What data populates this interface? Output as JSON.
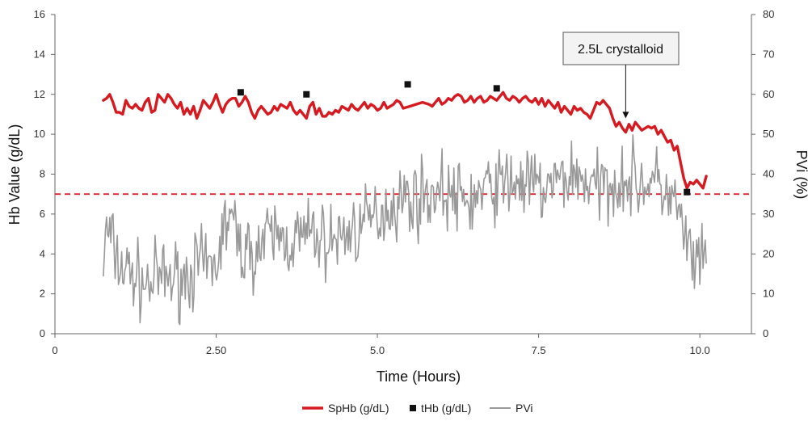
{
  "chart_data": {
    "type": "line",
    "xlabel": "Time (Hours)",
    "ylabel_left": "Hb Value (g/dL)",
    "ylabel_right": "PVi (%)",
    "x_ticks": [
      "0",
      "2.50",
      "5.0",
      "7.5",
      "10.0"
    ],
    "x_tick_values": [
      0,
      2.5,
      5.0,
      7.5,
      10.0
    ],
    "xlim": [
      0,
      10.8
    ],
    "ylim_left": [
      0,
      16
    ],
    "ylim_right": [
      0,
      80
    ],
    "y_left_ticks": [
      "0",
      "2",
      "4",
      "6",
      "8",
      "10",
      "12",
      "14",
      "16"
    ],
    "y_right_ticks": [
      "0",
      "10",
      "20",
      "30",
      "40",
      "50",
      "60",
      "70",
      "80"
    ],
    "grid": false,
    "legend_position": "bottom",
    "threshold": {
      "y": 7,
      "axis": "left",
      "style": "dashed",
      "color": "#e0202a"
    },
    "annotation": {
      "text": "2.5L crystalloid",
      "x": 8.85,
      "y": 10.8
    },
    "series": [
      {
        "name": "SpHb (g/dL)",
        "axis": "left",
        "style": "line",
        "color": "#d71920",
        "x": [
          0.75,
          0.8,
          0.85,
          0.9,
          0.95,
          1.0,
          1.05,
          1.1,
          1.15,
          1.2,
          1.25,
          1.3,
          1.35,
          1.4,
          1.45,
          1.5,
          1.55,
          1.6,
          1.65,
          1.7,
          1.75,
          1.8,
          1.85,
          1.9,
          1.95,
          2.0,
          2.05,
          2.1,
          2.15,
          2.2,
          2.25,
          2.3,
          2.35,
          2.4,
          2.45,
          2.5,
          2.55,
          2.6,
          2.65,
          2.7,
          2.75,
          2.8,
          2.85,
          2.9,
          2.95,
          3.0,
          3.05,
          3.1,
          3.15,
          3.2,
          3.25,
          3.3,
          3.35,
          3.4,
          3.45,
          3.5,
          3.55,
          3.6,
          3.65,
          3.7,
          3.75,
          3.8,
          3.85,
          3.9,
          3.95,
          4.0,
          4.05,
          4.1,
          4.15,
          4.2,
          4.25,
          4.3,
          4.35,
          4.4,
          4.45,
          4.5,
          4.55,
          4.6,
          4.65,
          4.7,
          4.75,
          4.8,
          4.85,
          4.9,
          4.95,
          5.0,
          5.05,
          5.1,
          5.15,
          5.2,
          5.25,
          5.3,
          5.35,
          5.4,
          5.5,
          5.6,
          5.7,
          5.8,
          5.85,
          5.9,
          5.95,
          6.0,
          6.05,
          6.1,
          6.15,
          6.2,
          6.25,
          6.3,
          6.35,
          6.4,
          6.45,
          6.5,
          6.55,
          6.6,
          6.65,
          6.7,
          6.75,
          6.8,
          6.85,
          6.9,
          6.95,
          7.0,
          7.05,
          7.1,
          7.15,
          7.2,
          7.25,
          7.3,
          7.35,
          7.4,
          7.45,
          7.5,
          7.55,
          7.6,
          7.65,
          7.7,
          7.75,
          7.8,
          7.85,
          7.9,
          7.95,
          8.0,
          8.05,
          8.1,
          8.15,
          8.2,
          8.25,
          8.3,
          8.35,
          8.4,
          8.45,
          8.5,
          8.55,
          8.6,
          8.65,
          8.7,
          8.75,
          8.8,
          8.85,
          8.9,
          8.95,
          9.0,
          9.05,
          9.1,
          9.15,
          9.2,
          9.25,
          9.3,
          9.35,
          9.4,
          9.45,
          9.5,
          9.55,
          9.6,
          9.65,
          9.7,
          9.75,
          9.8,
          9.85,
          9.9,
          9.95,
          10.0,
          10.05,
          10.1
        ],
        "y": [
          11.7,
          11.8,
          12.0,
          11.6,
          11.1,
          11.1,
          11.0,
          11.7,
          11.4,
          11.3,
          11.5,
          11.3,
          11.2,
          11.6,
          11.8,
          11.1,
          11.2,
          12.0,
          11.8,
          11.6,
          12.0,
          11.8,
          11.5,
          11.3,
          11.6,
          11.0,
          11.3,
          11.0,
          11.4,
          10.8,
          11.2,
          11.7,
          11.5,
          11.3,
          11.6,
          12.0,
          11.5,
          11.1,
          11.5,
          11.7,
          11.8,
          11.8,
          11.4,
          11.6,
          11.9,
          11.6,
          11.1,
          10.8,
          11.2,
          11.4,
          11.2,
          11.0,
          11.1,
          11.4,
          11.2,
          11.5,
          11.4,
          11.3,
          11.6,
          11.2,
          11.0,
          11.2,
          11.0,
          10.8,
          11.4,
          11.6,
          11.0,
          11.3,
          10.9,
          10.9,
          11.1,
          11.0,
          11.2,
          11.1,
          11.4,
          11.3,
          11.2,
          11.5,
          11.3,
          11.2,
          11.4,
          11.6,
          11.3,
          11.5,
          11.4,
          11.2,
          11.3,
          11.6,
          11.3,
          11.4,
          11.5,
          11.7,
          11.6,
          11.3,
          11.4,
          11.5,
          11.6,
          11.5,
          11.4,
          11.6,
          11.8,
          11.5,
          11.6,
          11.8,
          11.7,
          11.9,
          12.0,
          11.9,
          11.6,
          11.7,
          11.9,
          11.6,
          11.8,
          11.9,
          11.6,
          11.7,
          11.9,
          11.8,
          11.7,
          11.9,
          12.1,
          11.8,
          11.7,
          11.9,
          11.8,
          11.6,
          11.8,
          11.9,
          11.7,
          11.6,
          11.8,
          11.5,
          11.8,
          11.4,
          11.7,
          11.5,
          11.3,
          11.6,
          11.1,
          11.4,
          11.2,
          11.0,
          11.4,
          11.2,
          11.3,
          11.1,
          11.0,
          10.8,
          11.2,
          11.6,
          11.5,
          11.7,
          11.5,
          11.3,
          10.8,
          10.4,
          10.6,
          10.3,
          10.1,
          10.5,
          10.2,
          10.6,
          10.4,
          10.2,
          10.3,
          10.4,
          10.3,
          10.4,
          10.0,
          10.2,
          9.9,
          9.6,
          9.7,
          9.2,
          9.4,
          8.6,
          7.8,
          7.3,
          7.6,
          7.5,
          7.7,
          7.5,
          7.3,
          7.9
        ]
      },
      {
        "name": "tHb (g/dL)",
        "axis": "left",
        "style": "marker",
        "color": "#111111",
        "x": [
          2.88,
          3.9,
          5.47,
          6.85,
          9.8
        ],
        "y": [
          12.1,
          12.0,
          12.5,
          12.3,
          7.1
        ]
      },
      {
        "name": "PVi",
        "axis": "right",
        "style": "line",
        "color": "#999999",
        "seed": 7,
        "noise": 4.5,
        "x_start": 0.75,
        "x_end": 10.1,
        "n_points": 560,
        "baseline_x": [
          0.75,
          0.8,
          0.9,
          1.0,
          1.2,
          1.4,
          1.6,
          1.8,
          2.0,
          2.2,
          2.4,
          2.5,
          2.6,
          2.7,
          2.8,
          2.9,
          3.0,
          3.2,
          3.4,
          3.6,
          3.8,
          4.0,
          4.2,
          4.4,
          4.6,
          4.8,
          5.0,
          5.2,
          5.4,
          5.6,
          5.8,
          6.0,
          6.2,
          6.4,
          6.6,
          6.8,
          7.0,
          7.2,
          7.4,
          7.6,
          7.8,
          8.0,
          8.2,
          8.4,
          8.6,
          8.8,
          9.0,
          9.2,
          9.4,
          9.6,
          9.7,
          9.8,
          9.9,
          10.0,
          10.1
        ],
        "baseline_y": [
          17,
          26,
          22,
          17,
          15,
          12,
          14,
          14,
          14,
          17,
          16,
          17,
          25,
          30,
          25,
          21,
          20,
          22,
          25,
          23,
          24,
          25,
          23,
          24,
          26,
          27,
          30,
          32,
          34,
          34,
          35,
          36,
          34,
          33,
          35,
          37,
          38,
          38,
          37,
          36,
          38,
          40,
          39,
          36,
          38,
          39,
          38,
          38,
          37,
          33,
          28,
          22,
          18,
          16,
          18
        ]
      }
    ]
  }
}
